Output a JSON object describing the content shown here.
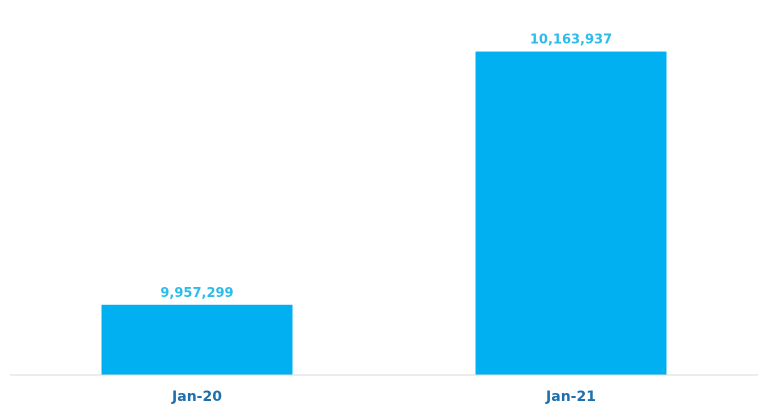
{
  "colors": {
    "bar": "#00b0f0",
    "data_label": "#2bbcec",
    "category_label": "#1f6fad",
    "axis_line": "#d9d9d9"
  },
  "chart_data": {
    "type": "bar",
    "categories": [
      "Jan-20",
      "Jan-21"
    ],
    "values": [
      9957299,
      10163937
    ],
    "value_labels": [
      "9,957,299",
      "10,163,937"
    ],
    "title": "",
    "xlabel": "",
    "ylabel": "",
    "ylim": [
      9900000,
      10175000
    ],
    "grid": false,
    "legend": "none"
  }
}
